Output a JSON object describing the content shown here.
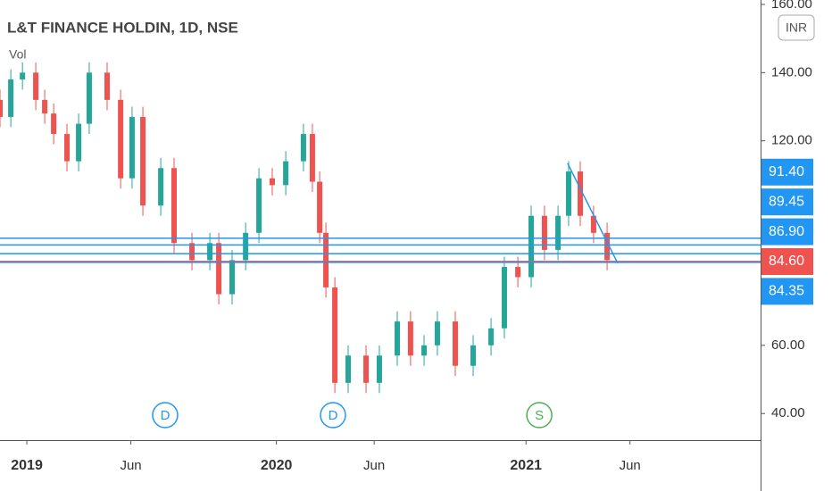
{
  "header": {
    "title": "L&T FINANCE HOLDIN, 1D, NSE",
    "indicator": "Vol",
    "currency": "INR"
  },
  "chart_data": {
    "type": "candlestick",
    "x": [
      -1.29,
      -0.77,
      -0.21,
      0.43,
      0.86,
      1.29,
      1.93,
      2.49,
      3.0,
      3.86,
      4.51,
      5.06,
      5.58,
      6.44,
      7.08,
      7.94,
      8.8,
      9.23,
      9.87,
      10.52,
      11.16,
      11.8,
      12.45,
      13.3,
      13.73,
      14.08,
      14.38,
      14.81,
      15.45,
      16.31,
      16.95,
      17.81,
      18.45,
      19.1,
      19.74,
      20.6,
      21.46,
      22.32,
      22.96,
      23.61,
      24.25,
      24.89,
      25.54,
      26.05,
      26.61,
      27.25,
      27.9
    ],
    "open": [
      132,
      127,
      138,
      140,
      132,
      128,
      122,
      114,
      125,
      140,
      132,
      109,
      127,
      101,
      112,
      90,
      85,
      90,
      75,
      85,
      93,
      109,
      107,
      114,
      122,
      108,
      93,
      77,
      49,
      57,
      49,
      57,
      67,
      57,
      60,
      67,
      54,
      60,
      65,
      83,
      80,
      98,
      88,
      98,
      111,
      98,
      93
    ],
    "high": [
      135,
      141,
      143,
      143,
      135,
      131,
      125,
      128,
      143,
      143,
      135,
      130,
      130,
      115,
      115,
      93,
      93,
      93,
      88,
      96,
      112,
      112,
      117,
      125,
      125,
      111,
      96,
      80,
      60,
      60,
      60,
      70,
      70,
      63,
      70,
      70,
      63,
      68,
      86,
      86,
      101,
      101,
      101,
      114,
      114,
      101,
      96
    ],
    "low": [
      124,
      124,
      135,
      129,
      125,
      119,
      111,
      111,
      122,
      129,
      106,
      106,
      98,
      98,
      87,
      82,
      82,
      72,
      72,
      82,
      90,
      104,
      104,
      111,
      105,
      90,
      74,
      46,
      46,
      46,
      46,
      54,
      54,
      54,
      57,
      51,
      51,
      57,
      62,
      77,
      77,
      85,
      85,
      95,
      95,
      90,
      82
    ],
    "close": [
      127,
      138,
      140,
      132,
      128,
      122,
      114,
      125,
      140,
      132,
      109,
      127,
      101,
      112,
      90,
      85,
      90,
      75,
      85,
      93,
      109,
      107,
      114,
      122,
      108,
      93,
      77,
      49,
      57,
      49,
      57,
      67,
      57,
      60,
      67,
      54,
      60,
      65,
      83,
      80,
      98,
      88,
      98,
      111,
      98,
      93,
      85
    ],
    "up_color": "#26a69a",
    "down_color": "#ef5350",
    "xlim": [
      -1.29,
      35.28
    ],
    "ylim": [
      32.2,
      161.3
    ],
    "xticks": [
      {
        "value": 0,
        "label": "2019"
      },
      {
        "value": 5,
        "label": "Jun"
      },
      {
        "value": 12,
        "label": "2020"
      },
      {
        "value": 16.7,
        "label": "Jun"
      },
      {
        "value": 24,
        "label": "2021"
      },
      {
        "value": 29,
        "label": "Jun"
      }
    ],
    "yticks": [
      {
        "value": 160,
        "label": "160.00"
      },
      {
        "value": 140,
        "label": "140.00"
      },
      {
        "value": 120,
        "label": "120.00"
      },
      {
        "value": 60,
        "label": "60.00"
      },
      {
        "value": 40,
        "label": "40.00"
      }
    ],
    "levels": [
      {
        "value": 91.4,
        "label": "91.40",
        "color": "#2196f3"
      },
      {
        "value": 89.45,
        "label": "89.45",
        "color": "#2196f3"
      },
      {
        "value": 86.9,
        "label": "86.90",
        "color": "#2196f3"
      },
      {
        "value": 84.6,
        "label": "84.60",
        "color": "#ef5350"
      },
      {
        "value": 84.35,
        "label": "84.35",
        "color": "#2196f3"
      }
    ],
    "trendline": {
      "x": [
        26.0,
        28.41
      ],
      "y": [
        113.4,
        84.1
      ],
      "color": "#2196f3"
    },
    "markers": [
      {
        "label": "D",
        "x": 6.65,
        "color": "#2196f3"
      },
      {
        "label": "D",
        "x": 14.72,
        "color": "#2196f3"
      },
      {
        "label": "S",
        "x": 24.64,
        "color": "#4caf50"
      }
    ]
  }
}
